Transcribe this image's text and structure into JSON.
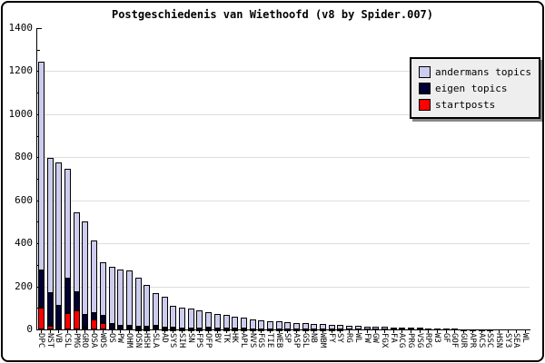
{
  "chart_data": {
    "type": "bar",
    "stacked": true,
    "title": "Postgeschiedenis van Wiethoofd (v8 by Spider.007)",
    "xlabel": "",
    "ylabel": "",
    "ylim": [
      0,
      1400
    ],
    "ytick_interval": 200,
    "grid": true,
    "legend_position": "top-right",
    "categories": [
      "DPC",
      "NST",
      "VB",
      "CSL",
      "PMG",
      "GRO",
      "OSA",
      "WOS",
      "OS",
      "PW",
      "OHM",
      "OSN",
      "HSH",
      "SLA",
      "AD",
      "SYS",
      "SIH",
      "SN",
      "FPS",
      "OFP",
      "BV",
      "TK",
      "HK",
      "APL",
      "NVS",
      "FGS",
      "TIE",
      "WEB",
      "SP",
      "ASP",
      "GSL",
      "NB",
      "WBM",
      "FY",
      "SY",
      "RG",
      "WL",
      "FW",
      "GW",
      "FGX",
      "FA",
      "ACG",
      "PRG",
      "VSG",
      "RPG",
      "W3",
      "GF",
      "GOF",
      "GUR",
      "APR",
      "ACS",
      "SSC",
      "HSN",
      "SY3",
      "SEA",
      "WL"
    ],
    "series": [
      {
        "name": "startposts",
        "color": "#ff0000",
        "values": [
          100,
          15,
          5,
          75,
          88,
          10,
          45,
          28,
          4,
          3,
          3,
          2,
          2,
          3,
          2,
          1,
          1,
          1,
          1,
          1,
          1,
          1,
          1,
          1,
          0,
          0,
          0,
          0,
          0,
          0,
          0,
          0,
          0,
          0,
          0,
          0,
          0,
          0,
          0,
          0,
          0,
          0,
          0,
          0,
          0,
          0,
          0,
          0,
          0,
          0,
          0,
          0,
          0,
          0,
          0,
          0
        ]
      },
      {
        "name": "eigen topics",
        "color": "#000033",
        "values": [
          175,
          155,
          105,
          160,
          87,
          58,
          30,
          34,
          20,
          15,
          12,
          10,
          12,
          14,
          8,
          6,
          5,
          4,
          4,
          7,
          3,
          3,
          3,
          4,
          2,
          2,
          2,
          1,
          1,
          1,
          1,
          1,
          1,
          1,
          1,
          0,
          0,
          0,
          0,
          0,
          0,
          0,
          0,
          0,
          0,
          0,
          0,
          0,
          0,
          0,
          0,
          0,
          0,
          0,
          0,
          0
        ]
      },
      {
        "name": "andermans topics",
        "color": "#ccccee",
        "values": [
          970,
          625,
          665,
          513,
          367,
          432,
          340,
          248,
          266,
          262,
          257,
          228,
          191,
          153,
          140,
          103,
          94,
          90,
          83,
          72,
          68,
          62,
          56,
          49,
          46,
          42,
          38,
          36,
          33,
          30,
          27,
          25,
          23,
          21,
          19,
          18,
          16,
          14,
          13,
          12,
          10,
          9,
          8,
          7,
          6,
          5,
          4,
          3,
          2,
          2,
          1,
          1,
          0,
          0,
          0,
          0
        ]
      }
    ]
  },
  "axes": {
    "y_ticks": [
      "0",
      "200",
      "400",
      "600",
      "800",
      "1000",
      "1200",
      "1400"
    ]
  },
  "legend": {
    "items": [
      {
        "label": "andermans topics",
        "color": "#ccccee"
      },
      {
        "label": "eigen topics",
        "color": "#000033"
      },
      {
        "label": "startposts",
        "color": "#ff0000"
      }
    ]
  },
  "colors": {
    "background": "#ffffff",
    "frame_border": "#000000",
    "grid": "#dddddd",
    "axis": "#000000",
    "bar_outline": "#000000",
    "legend_bg": "#eeeeee",
    "legend_shadow": "#888888"
  }
}
